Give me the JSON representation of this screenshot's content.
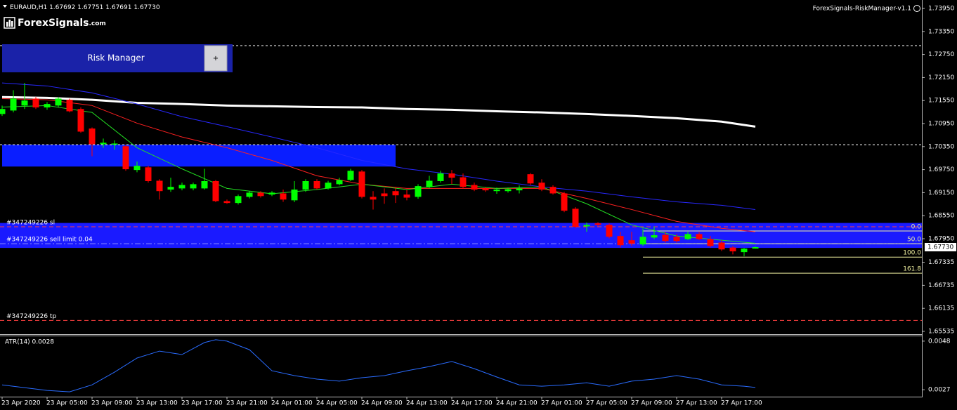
{
  "chart_data": [
    {
      "type": "candlestick",
      "title": "EURAUD,H1",
      "last_labels": [
        "1.67692",
        "1.67751",
        "1.67691",
        "1.67730"
      ],
      "categories": [
        "23 Apr 2020",
        null,
        null,
        null,
        "23 Apr 05:00",
        null,
        null,
        null,
        "23 Apr 09:00",
        null,
        null,
        null,
        "23 Apr 13:00",
        null,
        null,
        null,
        "23 Apr 17:00",
        null,
        null,
        null,
        "23 Apr 21:00",
        null,
        null,
        null,
        "24 Apr 01:00",
        null,
        null,
        null,
        "24 Apr 05:00",
        null,
        null,
        null,
        "24 Apr 09:00",
        null,
        null,
        null,
        "24 Apr 13:00",
        null,
        null,
        null,
        "24 Apr 17:00",
        null,
        null,
        null,
        "24 Apr 21:00",
        null,
        null,
        null,
        "27 Apr 01:00",
        null,
        null,
        null,
        "27 Apr 05:00",
        null,
        null,
        null,
        "27 Apr 09:00",
        null,
        null,
        null,
        "27 Apr 13:00",
        null,
        null,
        null,
        "27 Apr 17:00",
        null,
        null,
        null
      ],
      "open": [
        1.712,
        1.7129,
        1.7142,
        1.716,
        1.7137,
        1.7142,
        1.7157,
        1.7133,
        1.7082,
        1.7041,
        1.704,
        1.7036,
        1.6974,
        1.6981,
        1.6946,
        1.6923,
        1.6926,
        1.6926,
        1.6926,
        1.6945,
        1.6893,
        1.6888,
        1.6904,
        1.6915,
        1.691,
        1.6913,
        1.6895,
        1.6923,
        1.6945,
        1.6926,
        1.6937,
        1.6948,
        1.697,
        1.6904,
        1.6913,
        1.6919,
        1.691,
        1.6904,
        1.693,
        1.6945,
        1.6965,
        1.6955,
        1.6935,
        1.6926,
        1.6919,
        1.6919,
        1.6921,
        1.6963,
        1.6941,
        1.693,
        1.6913,
        1.6873,
        1.6827,
        1.6835,
        1.6831,
        1.6802,
        1.6791,
        1.678,
        1.6798,
        1.6805,
        1.68,
        1.6794,
        1.6807,
        1.6794,
        1.6785,
        1.6772,
        1.676,
        1.67692
      ],
      "high": [
        1.7142,
        1.7182,
        1.7201,
        1.7164,
        1.7151,
        1.7164,
        1.716,
        1.7137,
        1.7085,
        1.7056,
        1.7051,
        1.704,
        1.6996,
        1.6985,
        1.695,
        1.6954,
        1.6941,
        1.6941,
        1.6977,
        1.6948,
        1.6897,
        1.691,
        1.6919,
        1.6919,
        1.6919,
        1.6923,
        1.6945,
        1.695,
        1.695,
        1.6946,
        1.6954,
        1.6977,
        1.6974,
        1.6919,
        1.6926,
        1.693,
        1.6923,
        1.6937,
        1.6959,
        1.6972,
        1.6974,
        1.6965,
        1.6941,
        1.693,
        1.6928,
        1.6928,
        1.6934,
        1.6966,
        1.695,
        1.6934,
        1.6917,
        1.6877,
        1.6837,
        1.6838,
        1.6835,
        1.6813,
        1.6813,
        1.6822,
        1.6827,
        1.6813,
        1.6807,
        1.6813,
        1.6813,
        1.6802,
        1.6791,
        1.6776,
        1.6771,
        1.67751
      ],
      "low": [
        1.7115,
        1.7124,
        1.7133,
        1.7133,
        1.7131,
        1.7138,
        1.7124,
        1.7071,
        1.701,
        1.7032,
        1.7027,
        1.6972,
        1.6968,
        1.6941,
        1.6897,
        1.6917,
        1.6921,
        1.6921,
        1.6923,
        1.689,
        1.6886,
        1.6884,
        1.69,
        1.6902,
        1.6906,
        1.6891,
        1.689,
        1.6917,
        1.6923,
        1.6923,
        1.6934,
        1.6945,
        1.69,
        1.6871,
        1.6886,
        1.6888,
        1.6895,
        1.6899,
        1.6926,
        1.6941,
        1.6937,
        1.6926,
        1.6919,
        1.6917,
        1.6912,
        1.6915,
        1.6913,
        1.6935,
        1.6919,
        1.691,
        1.6864,
        1.6822,
        1.6813,
        1.6827,
        1.6796,
        1.6772,
        1.6776,
        1.6776,
        1.6794,
        1.6785,
        1.6785,
        1.6791,
        1.6791,
        1.6772,
        1.6763,
        1.6754,
        1.6749,
        1.67691
      ],
      "close": [
        1.7133,
        1.716,
        1.7155,
        1.7137,
        1.7146,
        1.716,
        1.7127,
        1.7074,
        1.7041,
        1.7045,
        1.7043,
        1.6976,
        1.6985,
        1.6945,
        1.6919,
        1.693,
        1.6935,
        1.6937,
        1.6945,
        1.6893,
        1.6888,
        1.6906,
        1.6915,
        1.6906,
        1.6915,
        1.6897,
        1.6923,
        1.6945,
        1.6926,
        1.6941,
        1.6948,
        1.6972,
        1.6904,
        1.6897,
        1.6906,
        1.6908,
        1.6902,
        1.6932,
        1.6946,
        1.6965,
        1.6954,
        1.693,
        1.6923,
        1.6921,
        1.6923,
        1.6924,
        1.6926,
        1.6939,
        1.6923,
        1.6913,
        1.6868,
        1.6826,
        1.6831,
        1.6831,
        1.68,
        1.6778,
        1.6782,
        1.68,
        1.6804,
        1.6789,
        1.6789,
        1.6807,
        1.6794,
        1.6776,
        1.6767,
        1.6762,
        1.6769,
        1.6773
      ],
      "up_color": "#00ff00",
      "down_color": "#ff0000",
      "ylim": [
        1.6548,
        1.7417
      ],
      "yticks": [
        {
          "value": 1.7395,
          "label": "1.73950"
        },
        {
          "value": 1.7335,
          "label": "1.73350"
        },
        {
          "value": 1.7275,
          "label": "1.72750"
        },
        {
          "value": 1.7215,
          "label": "1.72150"
        },
        {
          "value": 1.7155,
          "label": "1.71550"
        },
        {
          "value": 1.7095,
          "label": "1.70950"
        },
        {
          "value": 1.7035,
          "label": "1.70350"
        },
        {
          "value": 1.6975,
          "label": "1.69750"
        },
        {
          "value": 1.6915,
          "label": "1.69150"
        },
        {
          "value": 1.6855,
          "label": "1.68550"
        },
        {
          "value": 1.6795,
          "label": "1.67950"
        },
        1.67335,
        1.66735,
        1.66135,
        1.65535
      ],
      "series": [
        {
          "color": "#ffffff",
          "width": 3,
          "x": [
            0,
            4,
            8,
            12,
            16,
            20,
            24,
            28,
            32,
            36,
            40,
            44,
            48,
            52,
            56,
            60,
            64,
            67
          ],
          "values": [
            1.7164,
            1.7162,
            1.7157,
            1.7149,
            1.7146,
            1.7142,
            1.714,
            1.7138,
            1.7137,
            1.7133,
            1.7131,
            1.7127,
            1.7124,
            1.712,
            1.7115,
            1.7109,
            1.71,
            1.7087
          ]
        },
        {
          "color": "#2828ff",
          "width": 1,
          "x": [
            0,
            4,
            8,
            12,
            16,
            20,
            24,
            28,
            32,
            36,
            40,
            44,
            48,
            52,
            56,
            60,
            64,
            67
          ],
          "values": [
            1.7201,
            1.7193,
            1.7175,
            1.7146,
            1.7113,
            1.7087,
            1.706,
            1.7032,
            1.6999,
            1.6977,
            1.6963,
            1.6945,
            1.693,
            1.6919,
            1.6904,
            1.6891,
            1.6882,
            1.6871
          ]
        },
        {
          "color": "#ff2020",
          "width": 1,
          "x": [
            0,
            4,
            8,
            12,
            16,
            20,
            24,
            28,
            32,
            36,
            40,
            44,
            48,
            52,
            56,
            60,
            64,
            67
          ],
          "values": [
            1.716,
            1.7157,
            1.7142,
            1.7096,
            1.706,
            1.7032,
            1.6999,
            1.6959,
            1.6937,
            1.6926,
            1.6926,
            1.6926,
            1.6926,
            1.69,
            1.6871,
            1.684,
            1.6822,
            1.6813
          ]
        },
        {
          "color": "#22dd22",
          "width": 1,
          "x": [
            0,
            4,
            8,
            12,
            16,
            20,
            24,
            28,
            32,
            36,
            40,
            44,
            48,
            52,
            56,
            60,
            64,
            67
          ],
          "values": [
            1.7138,
            1.7142,
            1.7124,
            1.7032,
            1.6977,
            1.6926,
            1.6912,
            1.6923,
            1.6937,
            1.6923,
            1.6937,
            1.6926,
            1.693,
            1.6886,
            1.6831,
            1.6802,
            1.6791,
            1.6783
          ]
        }
      ],
      "zones": [
        {
          "from": 1.704,
          "to": 1.6983,
          "x": [
            0,
            35
          ],
          "color": "#0a1eff"
        },
        {
          "from": 1.6836,
          "to": 1.6771,
          "color": "#1a1aff"
        }
      ],
      "levels": [
        {
          "value": 1.7298,
          "color": "#ffffff",
          "style": "dot"
        },
        {
          "value": 1.704,
          "color": "#ffffff",
          "style": "dot"
        },
        {
          "value": 1.6826,
          "color": "#ff4040",
          "style": "dash",
          "label": "#347249226 sl"
        },
        {
          "value": 1.6782,
          "color": "#9090ff",
          "style": "dashdot",
          "label": "#347249226 sell limit 0.04"
        },
        {
          "value": 1.6582,
          "color": "#ff4040",
          "style": "dash",
          "label": "#347249226 tp"
        }
      ],
      "fibonacci": {
        "from_x": 57,
        "color": "#f0f0a0",
        "levels": [
          {
            "value": 1.6815,
            "label": "0.0"
          },
          {
            "value": 1.6782,
            "label": "50.0"
          },
          {
            "value": 1.6747,
            "label": "100.0"
          },
          {
            "value": 1.6705,
            "label": "161.8"
          }
        ]
      }
    },
    {
      "type": "line",
      "title": "ATR(14) 0.0028",
      "color": "#2a6cff",
      "x": [
        0,
        4,
        6,
        8,
        10,
        12,
        14,
        16,
        18,
        19,
        20,
        22,
        24,
        26,
        28,
        30,
        32,
        34,
        36,
        38,
        40,
        42,
        44,
        46,
        48,
        50,
        52,
        54,
        56,
        58,
        60,
        62,
        64,
        66,
        67
      ],
      "values": [
        0.00291,
        0.00267,
        0.00261,
        0.00291,
        0.00346,
        0.00407,
        0.00437,
        0.00422,
        0.00474,
        0.00486,
        0.0048,
        0.00443,
        0.00352,
        0.00331,
        0.00316,
        0.00307,
        0.00322,
        0.00331,
        0.00352,
        0.0037,
        0.00392,
        0.00361,
        0.00325,
        0.00291,
        0.00285,
        0.00291,
        0.003,
        0.00285,
        0.00307,
        0.00316,
        0.00331,
        0.00316,
        0.00291,
        0.00285,
        0.0028
      ],
      "ylim": [
        0.0024,
        0.00504
      ],
      "yticks": [
        0.0048,
        0.0027
      ]
    }
  ],
  "ui": {
    "logo": {
      "brand": "ForexSignals",
      "suffix": ".com"
    },
    "indicator": "ForexSignals-RiskManager-v1.1",
    "panel": {
      "title": "Risk Manager",
      "button": "+"
    }
  }
}
